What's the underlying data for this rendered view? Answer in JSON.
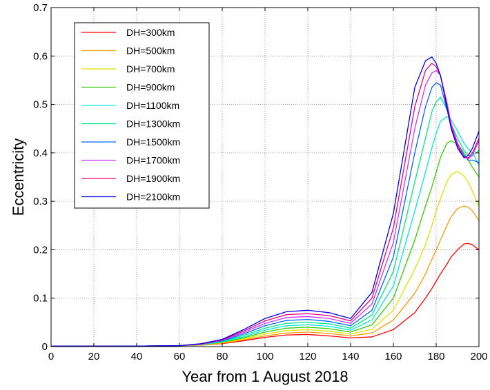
{
  "chart_data": {
    "type": "line",
    "title": "",
    "xlabel": "Year from 1 August 2018",
    "ylabel": "Eccentricity",
    "xlim": [
      0,
      200
    ],
    "ylim": [
      0,
      0.7
    ],
    "xticks": [
      0,
      20,
      40,
      60,
      80,
      100,
      120,
      140,
      160,
      180,
      200
    ],
    "yticks": [
      0,
      0.1,
      0.2,
      0.3,
      0.4,
      0.5,
      0.6,
      0.7
    ],
    "xtick_labels": [
      "0",
      "20",
      "40",
      "60",
      "80",
      "100",
      "120",
      "140",
      "160",
      "180",
      "200"
    ],
    "ytick_labels": [
      "0",
      "0.1",
      "0.2",
      "0.3",
      "0.4",
      "0.5",
      "0.6",
      "0.7"
    ],
    "grid": true,
    "grid_style": "dotted",
    "legend_position": "top-left",
    "x": [
      0,
      20,
      40,
      60,
      70,
      80,
      90,
      100,
      110,
      120,
      130,
      140,
      150,
      160,
      170,
      175,
      178,
      180,
      182,
      185,
      187,
      190,
      193,
      195,
      197,
      200
    ],
    "series": [
      {
        "name": "DH=300km",
        "color": "#ff0000",
        "values": [
          0.001,
          0.001,
          0.001,
          0.002,
          0.003,
          0.006,
          0.012,
          0.019,
          0.024,
          0.025,
          0.022,
          0.018,
          0.02,
          0.035,
          0.07,
          0.1,
          0.12,
          0.135,
          0.15,
          0.17,
          0.185,
          0.2,
          0.212,
          0.213,
          0.21,
          0.2
        ]
      },
      {
        "name": "DH=500km",
        "color": "#ff9900",
        "values": [
          0.001,
          0.001,
          0.001,
          0.002,
          0.003,
          0.007,
          0.014,
          0.022,
          0.028,
          0.03,
          0.027,
          0.022,
          0.028,
          0.055,
          0.11,
          0.15,
          0.18,
          0.2,
          0.22,
          0.25,
          0.268,
          0.285,
          0.29,
          0.288,
          0.28,
          0.26
        ]
      },
      {
        "name": "DH=700km",
        "color": "#d9e600",
        "values": [
          0.001,
          0.001,
          0.001,
          0.002,
          0.004,
          0.008,
          0.016,
          0.026,
          0.033,
          0.035,
          0.032,
          0.026,
          0.036,
          0.075,
          0.16,
          0.21,
          0.25,
          0.28,
          0.305,
          0.34,
          0.355,
          0.362,
          0.352,
          0.34,
          0.32,
          0.29
        ]
      },
      {
        "name": "DH=900km",
        "color": "#33cc00",
        "values": [
          0.001,
          0.001,
          0.001,
          0.002,
          0.004,
          0.009,
          0.018,
          0.03,
          0.038,
          0.04,
          0.037,
          0.03,
          0.045,
          0.1,
          0.22,
          0.29,
          0.33,
          0.36,
          0.39,
          0.42,
          0.425,
          0.418,
          0.4,
          0.385,
          0.37,
          0.35
        ]
      },
      {
        "name": "DH=1100km",
        "color": "#00e6e6",
        "values": [
          0.001,
          0.001,
          0.001,
          0.002,
          0.004,
          0.01,
          0.02,
          0.034,
          0.043,
          0.045,
          0.042,
          0.034,
          0.055,
          0.125,
          0.28,
          0.36,
          0.41,
          0.44,
          0.465,
          0.475,
          0.468,
          0.445,
          0.42,
          0.408,
          0.4,
          0.375
        ]
      },
      {
        "name": "DH=1300km",
        "color": "#00e680",
        "values": [
          0.001,
          0.001,
          0.001,
          0.002,
          0.005,
          0.011,
          0.023,
          0.038,
          0.048,
          0.05,
          0.047,
          0.038,
          0.065,
          0.155,
          0.34,
          0.43,
          0.485,
          0.505,
          0.515,
          0.49,
          0.46,
          0.43,
          0.405,
          0.395,
          0.395,
          0.405
        ]
      },
      {
        "name": "DH=1500km",
        "color": "#0066ff",
        "values": [
          0.001,
          0.001,
          0.001,
          0.002,
          0.005,
          0.012,
          0.026,
          0.043,
          0.054,
          0.056,
          0.052,
          0.043,
          0.075,
          0.185,
          0.4,
          0.495,
          0.535,
          0.545,
          0.54,
          0.49,
          0.455,
          0.42,
          0.395,
          0.385,
          0.385,
          0.38
        ]
      },
      {
        "name": "DH=1700km",
        "color": "#cc33ff",
        "values": [
          0.001,
          0.001,
          0.001,
          0.002,
          0.005,
          0.013,
          0.029,
          0.048,
          0.06,
          0.062,
          0.058,
          0.048,
          0.088,
          0.215,
          0.45,
          0.54,
          0.565,
          0.57,
          0.56,
          0.505,
          0.46,
          0.42,
          0.392,
          0.388,
          0.395,
          0.425
        ]
      },
      {
        "name": "DH=1900km",
        "color": "#e6007a",
        "values": [
          0.001,
          0.001,
          0.001,
          0.002,
          0.005,
          0.014,
          0.032,
          0.053,
          0.066,
          0.068,
          0.064,
          0.053,
          0.1,
          0.245,
          0.495,
          0.57,
          0.585,
          0.578,
          0.56,
          0.5,
          0.455,
          0.415,
          0.39,
          0.39,
          0.4,
          0.43
        ]
      },
      {
        "name": "DH=2100km",
        "color": "#0000e6",
        "values": [
          0.001,
          0.001,
          0.001,
          0.002,
          0.006,
          0.015,
          0.035,
          0.058,
          0.072,
          0.075,
          0.07,
          0.058,
          0.112,
          0.275,
          0.535,
          0.59,
          0.598,
          0.585,
          0.56,
          0.495,
          0.45,
          0.41,
          0.39,
          0.395,
          0.41,
          0.445
        ]
      }
    ]
  }
}
